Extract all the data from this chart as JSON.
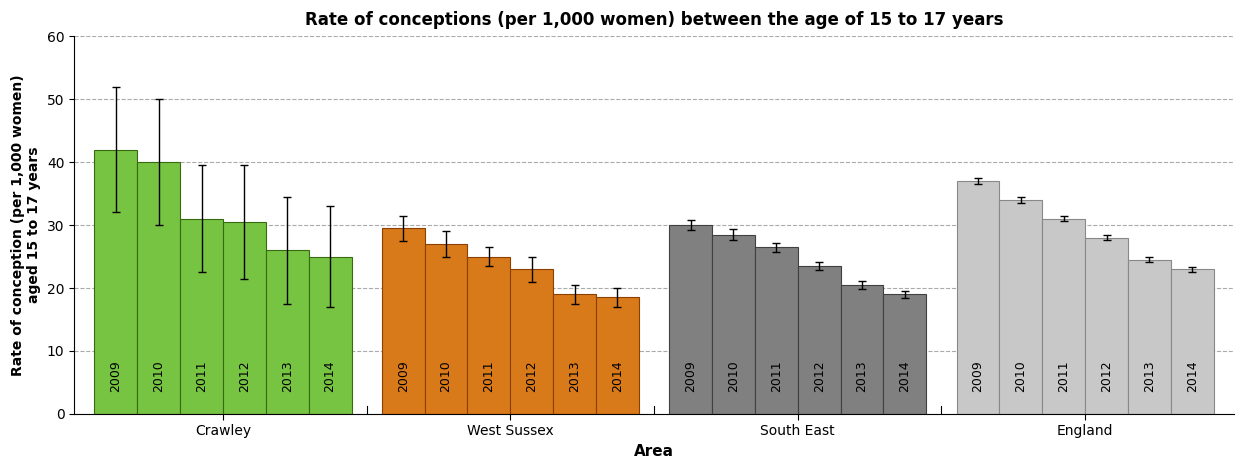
{
  "title": "Rate of conceptions (per 1,000 women) between the age of 15 to 17 years",
  "ylabel": "Rate of conception (per 1,000 women)\naged 15 to 17 years",
  "xlabel": "Area",
  "areas": [
    "Crawley",
    "West Sussex",
    "South East",
    "England"
  ],
  "years": [
    "2009",
    "2010",
    "2011",
    "2012",
    "2013",
    "2014"
  ],
  "values": {
    "Crawley": [
      42.0,
      40.0,
      31.0,
      30.5,
      26.0,
      25.0
    ],
    "West Sussex": [
      29.5,
      27.0,
      25.0,
      23.0,
      19.0,
      18.5
    ],
    "South East": [
      30.0,
      28.5,
      26.5,
      23.5,
      20.5,
      19.0
    ],
    "England": [
      37.0,
      34.0,
      31.0,
      28.0,
      24.5,
      23.0
    ]
  },
  "errors": {
    "Crawley": [
      10.0,
      10.0,
      8.5,
      9.0,
      8.5,
      8.0
    ],
    "West Sussex": [
      2.0,
      2.0,
      1.5,
      2.0,
      1.5,
      1.5
    ],
    "South East": [
      0.8,
      0.8,
      0.7,
      0.7,
      0.6,
      0.6
    ],
    "England": [
      0.5,
      0.5,
      0.4,
      0.4,
      0.4,
      0.4
    ]
  },
  "colors": {
    "Crawley": "#76C442",
    "West Sussex": "#D97A1A",
    "South East": "#808080",
    "England": "#C8C8C8"
  },
  "edge_colors": {
    "Crawley": "#3A6A10",
    "West Sussex": "#8B4000",
    "South East": "#404040",
    "England": "#888888"
  },
  "ylim": [
    0,
    60
  ],
  "yticks": [
    0,
    10,
    20,
    30,
    40,
    50,
    60
  ],
  "background_color": "#FFFFFF",
  "grid_color": "#AAAAAA",
  "title_fontsize": 12,
  "label_fontsize": 10,
  "axis_label_fontsize": 11,
  "tick_fontsize": 10,
  "year_label_fontsize": 9
}
